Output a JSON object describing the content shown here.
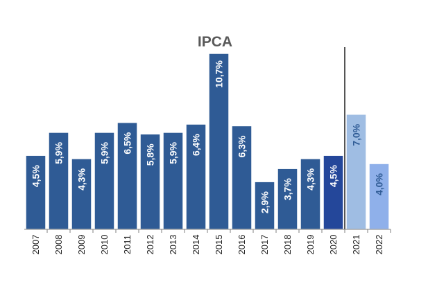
{
  "chart_data": {
    "type": "bar",
    "title": "IPCA",
    "categories": [
      "2007",
      "2008",
      "2009",
      "2010",
      "2011",
      "2012",
      "2013",
      "2014",
      "2015",
      "2016",
      "2017",
      "2018",
      "2019",
      "2020",
      "2021",
      "2022"
    ],
    "values": [
      4.5,
      5.9,
      4.3,
      5.9,
      6.5,
      5.8,
      5.9,
      6.4,
      10.7,
      6.3,
      2.9,
      3.7,
      4.3,
      4.5,
      7.0,
      4.0
    ],
    "value_labels": [
      "4,5%",
      "5,9%",
      "4,3%",
      "5,9%",
      "6,5%",
      "5,8%",
      "5,9%",
      "6,4%",
      "10,7%",
      "6,3%",
      "2,9%",
      "3,7%",
      "4,3%",
      "4,5%",
      "7,0%",
      "4,0%"
    ],
    "ylim": [
      0,
      10.7
    ],
    "grid": false,
    "legend": "none",
    "xlabel": "",
    "ylabel": "",
    "colors": {
      "actual": "#2f5b95",
      "actual_last": "#24479a",
      "forecast_2021": "#9fbde3",
      "forecast_2022": "#8fb0ea",
      "divider": "#555555",
      "axis": "#7f7f7f"
    }
  }
}
